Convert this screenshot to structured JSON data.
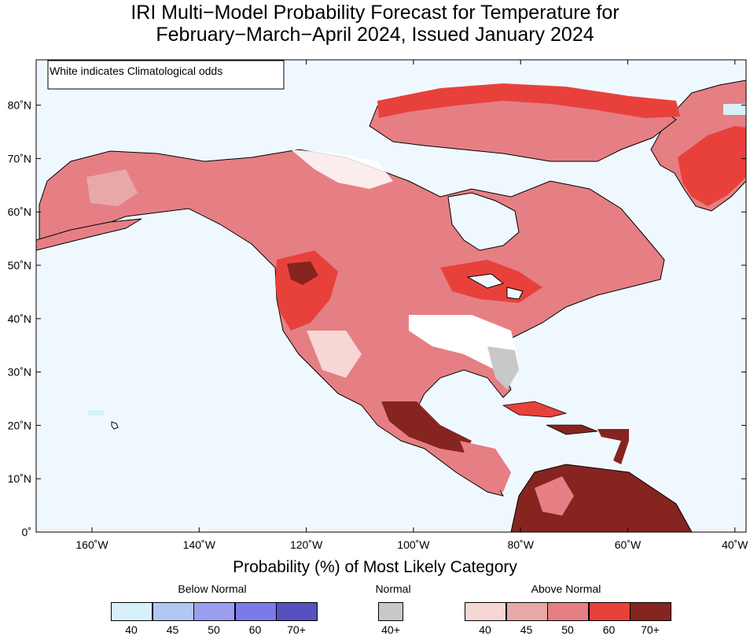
{
  "title": {
    "line1": "IRI Multi−Model Probability Forecast for Temperature for",
    "line2": "February−March−April 2024, Issued January 2024"
  },
  "map": {
    "note": "White indicates Climatological odds",
    "lat_labels": [
      "0˚",
      "10˚N",
      "20˚N",
      "30˚N",
      "40˚N",
      "50˚N",
      "60˚N",
      "70˚N",
      "80˚N"
    ],
    "lon_labels": [
      "160˚W",
      "140˚W",
      "120˚W",
      "100˚W",
      "80˚W",
      "60˚W",
      "40˚W"
    ],
    "ocean_color": "#f0f8ff",
    "land_default_color": "#e88a8e"
  },
  "legend": {
    "title": "Probability (%) of Most Likely Category",
    "below": {
      "label": "Below Normal",
      "colors": [
        "#d7f0fa",
        "#b2c8f2",
        "#9c9ef0",
        "#7c7ae8",
        "#5650c0"
      ],
      "ticks": [
        "40",
        "45",
        "50",
        "60",
        "70+"
      ]
    },
    "normal": {
      "label": "Normal",
      "color": "#c8c8c8",
      "tick": "40+"
    },
    "above": {
      "label": "Above Normal",
      "colors": [
        "#f7d6d6",
        "#e8a8a8",
        "#e57f84",
        "#e8413c",
        "#862420"
      ],
      "ticks": [
        "40",
        "45",
        "50",
        "60",
        "70+"
      ]
    }
  }
}
